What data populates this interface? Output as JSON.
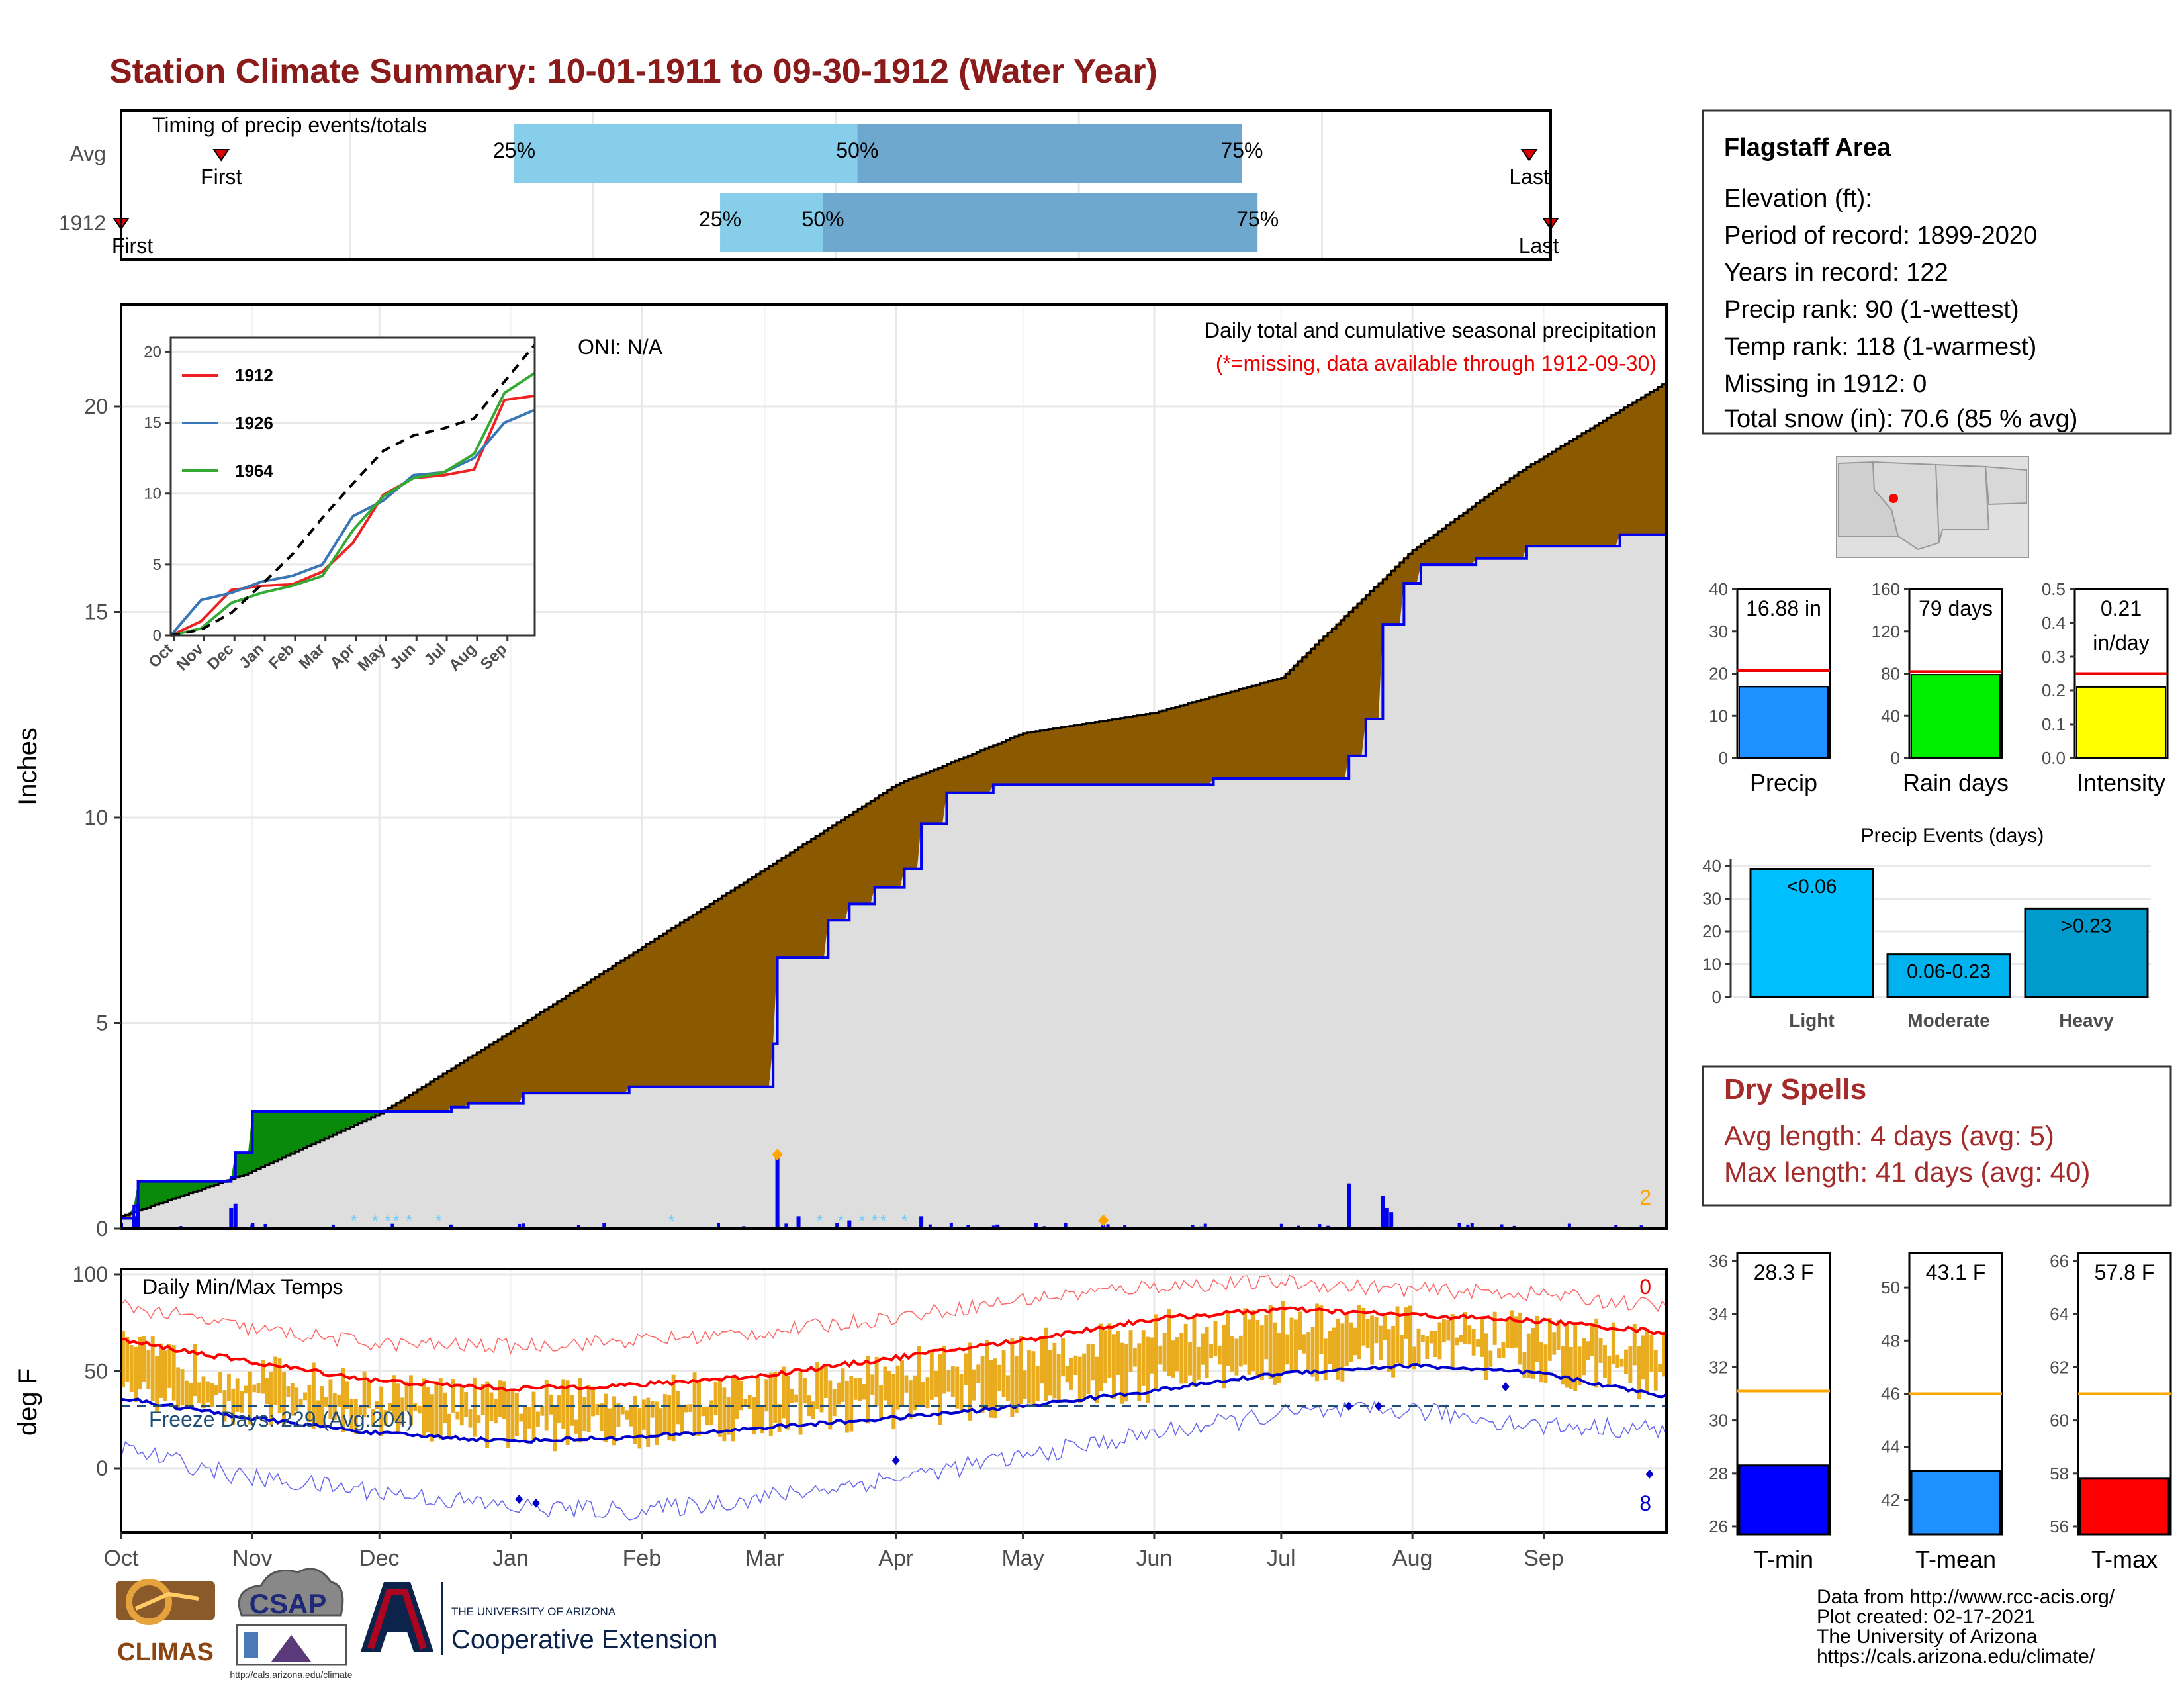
{
  "title": "Station Climate Summary: 10-01-1911 to 09-30-1912 (Water Year)",
  "timing": {
    "label": "Timing of precip events/totals",
    "rows": [
      {
        "name": "Avg",
        "first_label": "First",
        "last_label": "Last",
        "first": 0.07,
        "last": 0.985,
        "q25": 0.275,
        "q50": 0.515,
        "q75": 0.784,
        "q25_label": "25%",
        "q50_label": "50%",
        "q75_label": "75%"
      },
      {
        "name": "1912",
        "first_label": "First",
        "last_label": "Last",
        "first": 0.0,
        "last": 1.0,
        "q25": 0.419,
        "q50": 0.491,
        "q75": 0.795,
        "q25_label": "25%",
        "q50_label": "50%",
        "q75_label": "75%"
      }
    ],
    "colors": {
      "light": "#87ceeb",
      "dark": "#6fa8cf"
    }
  },
  "precip_panel": {
    "title": "Daily total and cumulative seasonal precipitation",
    "note": "(*=missing, data available through 1912-09-30)",
    "oni": "ONI: N/A",
    "ylabel": "Inches",
    "yticks": [
      "0",
      "5",
      "10",
      "15",
      "20"
    ],
    "corner_count": "2"
  },
  "temp_panel": {
    "title": "Daily Min/Max Temps",
    "ylabel": "deg F",
    "yticks": [
      "0",
      "50",
      "100"
    ],
    "freeze_label": "Freeze Days: 229 (Avg:204)",
    "max_count": "0",
    "min_count": "8"
  },
  "months": [
    "Oct",
    "Nov",
    "Dec",
    "Jan",
    "Feb",
    "Mar",
    "Apr",
    "May",
    "Jun",
    "Jul",
    "Aug",
    "Sep"
  ],
  "info": {
    "station": "Flagstaff Area",
    "elevation": "Elevation (ft):",
    "period": "Period of record: 1899-2020",
    "years": "Years in record: 122",
    "precip_rank": "Precip rank: 90 (1-wettest)",
    "temp_rank": "Temp rank: 118 (1-warmest)",
    "missing": "Missing in 1912: 0",
    "snow": "Total snow (in): 70.6 (85 % avg)"
  },
  "mini_bars": [
    {
      "name": "Precip",
      "value_label": "16.88 in",
      "value": 16.88,
      "avg": 20.7,
      "ymax": 40,
      "ticks": [
        "0",
        "10",
        "20",
        "30",
        "40"
      ],
      "color": "#1e90ff"
    },
    {
      "name": "Rain days",
      "value_label": "79 days",
      "value": 79,
      "avg": 82,
      "ymax": 160,
      "ticks": [
        "0",
        "40",
        "80",
        "120",
        "160"
      ],
      "color": "#00ee00"
    },
    {
      "name": "Intensity",
      "value_label": "0.21",
      "unit_label": "in/day",
      "value": 0.21,
      "avg": 0.25,
      "ymax": 0.5,
      "ticks": [
        "0.0",
        "0.1",
        "0.2",
        "0.3",
        "0.4",
        "0.5"
      ],
      "color": "#ffff00"
    }
  ],
  "events": {
    "title": "Precip Events (days)",
    "ticks": [
      "0",
      "10",
      "20",
      "30",
      "40"
    ],
    "bars": [
      {
        "name": "Light",
        "label": "<0.06",
        "value": 39,
        "color": "#00bfff"
      },
      {
        "name": "Moderate",
        "label": "0.06-0.23",
        "value": 13,
        "color": "#00b2ee"
      },
      {
        "name": "Heavy",
        "label": ">0.23",
        "value": 27,
        "color": "#009acd"
      }
    ]
  },
  "dry_spells": {
    "title": "Dry Spells",
    "avg": "Avg length: 4 days (avg: 5)",
    "max": "Max length: 41 days (avg: 40)"
  },
  "temp_bars": [
    {
      "name": "T-min",
      "value_label": "28.3 F",
      "value": 28.3,
      "avg": 31.1,
      "ymin": 25.7,
      "ymax": 36.3,
      "ticks": [
        "26",
        "28",
        "30",
        "32",
        "34",
        "36"
      ],
      "color": "#0000ff"
    },
    {
      "name": "T-mean",
      "value_label": "43.1 F",
      "value": 43.1,
      "avg": 46.0,
      "ymin": 40.7,
      "ymax": 51.3,
      "ticks": [
        "42",
        "44",
        "46",
        "48",
        "50"
      ],
      "color": "#1e90ff"
    },
    {
      "name": "T-max",
      "value_label": "57.8 F",
      "value": 57.8,
      "avg": 61.0,
      "ymin": 55.7,
      "ymax": 66.3,
      "ticks": [
        "56",
        "58",
        "60",
        "62",
        "64",
        "66"
      ],
      "color": "#ff0000"
    }
  ],
  "footer": {
    "line1": "Data from http://www.rcc-acis.org/",
    "line2": "Plot created: 02-17-2021",
    "line3": "The University of Arizona",
    "line4": "https://cals.arizona.edu/climate/"
  },
  "logos": {
    "climas": "CLIMAS",
    "csap": "CSAP",
    "csap_url": "http://cals.arizona.edu/climate",
    "ua_small": "THE UNIVERSITY OF ARIZONA",
    "ua_big": "Cooperative Extension"
  },
  "chart_data": [
    {
      "type": "area",
      "title": "Daily total and cumulative seasonal precipitation",
      "ylabel": "Inches",
      "ylim": [
        0,
        22.5
      ],
      "x_unit": "day of water year (Oct 1 = 0)",
      "avg_cumulative": {
        "x": [
          0,
          30,
          61,
          92,
          123,
          152,
          183,
          213,
          244,
          274,
          305,
          330,
          365
        ],
        "y": [
          0.3,
          1.35,
          2.8,
          4.8,
          6.85,
          8.75,
          10.8,
          12.05,
          12.55,
          13.4,
          16.5,
          18.4,
          20.6
        ]
      },
      "year_cumulative": {
        "steps": [
          [
            0,
            0.25
          ],
          [
            3,
            0.55
          ],
          [
            4,
            1.15
          ],
          [
            26,
            1.25
          ],
          [
            27,
            1.85
          ],
          [
            31,
            2.85
          ],
          [
            58,
            2.85
          ],
          [
            78,
            2.95
          ],
          [
            82,
            3.05
          ],
          [
            95,
            3.3
          ],
          [
            120,
            3.45
          ],
          [
            151,
            3.45
          ],
          [
            154,
            4.5
          ],
          [
            155,
            6.6
          ],
          [
            167,
            7.5
          ],
          [
            172,
            7.9
          ],
          [
            178,
            8.3
          ],
          [
            185,
            8.75
          ],
          [
            189,
            9.85
          ],
          [
            195,
            10.6
          ],
          [
            206,
            10.8
          ],
          [
            258,
            10.95
          ],
          [
            286,
            10.95
          ],
          [
            290,
            11.5
          ],
          [
            294,
            12.4
          ],
          [
            298,
            14.7
          ],
          [
            303,
            15.7
          ],
          [
            307,
            16.15
          ],
          [
            320,
            16.3
          ],
          [
            332,
            16.6
          ],
          [
            354,
            16.88
          ],
          [
            365,
            16.88
          ]
        ]
      },
      "daily_max": {
        "x": [
          3,
          4,
          26,
          27,
          31,
          78,
          155,
          160,
          172,
          189,
          207,
          232,
          290,
          298,
          299,
          300
        ],
        "y": [
          0.3,
          0.6,
          0.5,
          0.6,
          0.1,
          0.1,
          1.8,
          0.3,
          0.2,
          0.3,
          0.1,
          0.1,
          1.1,
          0.8,
          0.5,
          0.4
        ]
      }
    },
    {
      "type": "line",
      "title": "",
      "xlabel": "",
      "x": [
        "Oct",
        "Nov",
        "Dec",
        "Jan",
        "Feb",
        "Mar",
        "Apr",
        "May",
        "Jun",
        "Jul",
        "Aug",
        "Sep"
      ],
      "ylim": [
        0,
        20
      ],
      "series": [
        {
          "name": "1912",
          "color": "#ee2222",
          "values": [
            1.0,
            3.2,
            3.5,
            3.6,
            4.5,
            6.5,
            9.9,
            11.1,
            11.3,
            11.7,
            16.6,
            16.9
          ]
        },
        {
          "name": "1926",
          "color": "#3777b5",
          "values": [
            2.5,
            3.0,
            3.8,
            4.2,
            5.0,
            8.4,
            9.5,
            11.3,
            11.5,
            12.5,
            15.0,
            15.9
          ]
        },
        {
          "name": "1964",
          "color": "#33aa33",
          "values": [
            0.5,
            2.3,
            3.0,
            3.5,
            4.2,
            7.4,
            9.8,
            11.1,
            11.5,
            12.8,
            17.1,
            18.5
          ]
        },
        {
          "name": "",
          "color": "#000000",
          "values": [
            0.4,
            1.6,
            3.6,
            5.7,
            8.3,
            10.7,
            13.0,
            14.1,
            14.6,
            15.3,
            17.9,
            20.5
          ]
        }
      ]
    },
    {
      "type": "line",
      "title": "Daily Min/Max Temps",
      "ylabel": "deg F",
      "ylim": [
        -30,
        100
      ],
      "series": [
        {
          "name": "avg max",
          "color": "#ff0000",
          "x": [
            0,
            30,
            61,
            92,
            123,
            152,
            183,
            213,
            244,
            274,
            305,
            335,
            365
          ],
          "values": [
            66,
            55,
            45,
            41,
            43,
            48,
            57,
            66,
            77,
            82,
            79,
            76,
            70
          ]
        },
        {
          "name": "avg min",
          "color": "#0000cc",
          "x": [
            0,
            30,
            61,
            92,
            123,
            152,
            183,
            213,
            244,
            274,
            305,
            335,
            365
          ],
          "values": [
            36,
            26,
            18,
            14,
            16,
            21,
            26,
            32,
            40,
            49,
            53,
            49,
            37
          ]
        },
        {
          "name": "record max",
          "color": "#ff6666",
          "x": [
            0,
            30,
            61,
            92,
            123,
            152,
            183,
            213,
            244,
            274,
            305,
            335,
            365
          ],
          "values": [
            84,
            72,
            64,
            63,
            66,
            70,
            78,
            87,
            94,
            96,
            92,
            90,
            83
          ]
        },
        {
          "name": "record min",
          "color": "#6666ee",
          "x": [
            0,
            30,
            61,
            92,
            123,
            152,
            183,
            213,
            244,
            274,
            305,
            335,
            365
          ],
          "values": [
            10,
            -5,
            -12,
            -20,
            -22,
            -15,
            -5,
            6,
            18,
            28,
            30,
            22,
            20
          ]
        },
        {
          "name": "freeze",
          "color": "#1f4e79",
          "x": [
            0,
            365
          ],
          "values": [
            32,
            32
          ]
        }
      ]
    },
    {
      "type": "bar",
      "categories": [
        "Light",
        "Moderate",
        "Heavy"
      ],
      "values": [
        39,
        13,
        27
      ],
      "title": "Precip Events (days)",
      "ylim": [
        0,
        40
      ]
    }
  ]
}
